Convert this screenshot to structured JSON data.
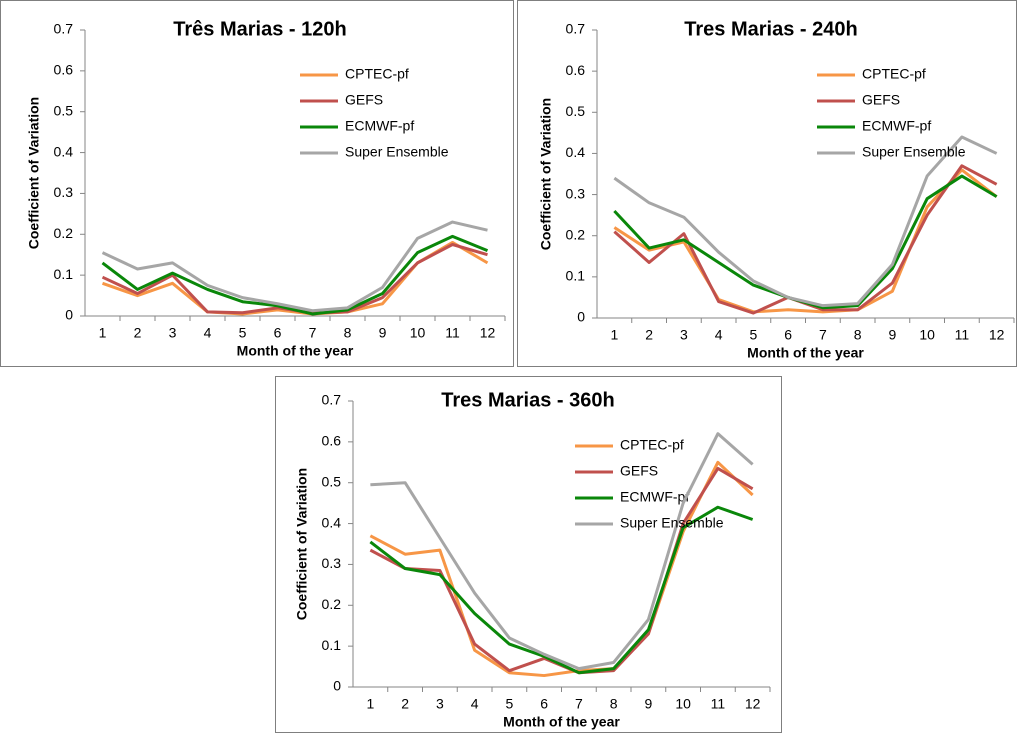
{
  "chart_data": [
    {
      "type": "line",
      "title": "Três Marias - 120h",
      "x_label": "Month of the year",
      "y_label": "Coefficient of Variation",
      "categories": [
        "1",
        "2",
        "3",
        "4",
        "5",
        "6",
        "7",
        "8",
        "9",
        "10",
        "11",
        "12"
      ],
      "ylim": [
        0,
        0.7
      ],
      "yticks": [
        0,
        0.1,
        0.2,
        0.3,
        0.4,
        0.5,
        0.6,
        0.7
      ],
      "grid": false,
      "series": [
        {
          "name": "CPTEC-pf",
          "color": "#f79646",
          "values": [
            0.08,
            0.05,
            0.08,
            0.01,
            0.005,
            0.015,
            0.005,
            0.01,
            0.03,
            0.13,
            0.18,
            0.13
          ]
        },
        {
          "name": "GEFS",
          "color": "#c0504d",
          "values": [
            0.095,
            0.055,
            0.1,
            0.01,
            0.008,
            0.02,
            0.007,
            0.01,
            0.045,
            0.13,
            0.175,
            0.15
          ]
        },
        {
          "name": "ECMWF-pf",
          "color": "#0a870a",
          "values": [
            0.13,
            0.065,
            0.105,
            0.065,
            0.035,
            0.025,
            0.005,
            0.015,
            0.055,
            0.155,
            0.195,
            0.16
          ]
        },
        {
          "name": "Super Ensemble",
          "color": "#a6a6a6",
          "values": [
            0.155,
            0.115,
            0.13,
            0.075,
            0.045,
            0.03,
            0.013,
            0.02,
            0.07,
            0.19,
            0.23,
            0.21
          ]
        }
      ]
    },
    {
      "type": "line",
      "title": "Tres Marias - 240h",
      "x_label": "Month of the year",
      "y_label": "Coefficient of Variation",
      "categories": [
        "1",
        "2",
        "3",
        "4",
        "5",
        "6",
        "7",
        "8",
        "9",
        "10",
        "11",
        "12"
      ],
      "ylim": [
        0,
        0.7
      ],
      "yticks": [
        0,
        0.1,
        0.2,
        0.3,
        0.4,
        0.5,
        0.6,
        0.7
      ],
      "grid": false,
      "series": [
        {
          "name": "CPTEC-pf",
          "color": "#f79646",
          "values": [
            0.22,
            0.165,
            0.185,
            0.045,
            0.015,
            0.02,
            0.015,
            0.02,
            0.065,
            0.27,
            0.36,
            0.295
          ]
        },
        {
          "name": "GEFS",
          "color": "#c0504d",
          "values": [
            0.21,
            0.135,
            0.205,
            0.04,
            0.012,
            0.05,
            0.02,
            0.02,
            0.085,
            0.25,
            0.37,
            0.325
          ]
        },
        {
          "name": "ECMWF-pf",
          "color": "#0a870a",
          "values": [
            0.26,
            0.17,
            0.19,
            0.135,
            0.08,
            0.05,
            0.025,
            0.03,
            0.12,
            0.29,
            0.345,
            0.295
          ]
        },
        {
          "name": "Super Ensemble",
          "color": "#a6a6a6",
          "values": [
            0.34,
            0.28,
            0.245,
            0.16,
            0.09,
            0.05,
            0.03,
            0.035,
            0.13,
            0.345,
            0.44,
            0.4
          ]
        }
      ]
    },
    {
      "type": "line",
      "title": "Tres Marias - 360h",
      "x_label": "Month of the year",
      "y_label": "Coefficient of Variation",
      "categories": [
        "1",
        "2",
        "3",
        "4",
        "5",
        "6",
        "7",
        "8",
        "9",
        "10",
        "11",
        "12"
      ],
      "ylim": [
        0,
        0.7
      ],
      "yticks": [
        0,
        0.1,
        0.2,
        0.3,
        0.4,
        0.5,
        0.6,
        0.7
      ],
      "grid": false,
      "series": [
        {
          "name": "CPTEC-pf",
          "color": "#f79646",
          "values": [
            0.37,
            0.325,
            0.335,
            0.09,
            0.035,
            0.028,
            0.04,
            0.045,
            0.13,
            0.38,
            0.55,
            0.47
          ]
        },
        {
          "name": "GEFS",
          "color": "#c0504d",
          "values": [
            0.335,
            0.29,
            0.285,
            0.105,
            0.04,
            0.07,
            0.035,
            0.04,
            0.13,
            0.4,
            0.535,
            0.485
          ]
        },
        {
          "name": "ECMWF-pf",
          "color": "#0a870a",
          "values": [
            0.355,
            0.29,
            0.275,
            0.18,
            0.105,
            0.075,
            0.035,
            0.045,
            0.14,
            0.39,
            0.44,
            0.41
          ]
        },
        {
          "name": "Super Ensemble",
          "color": "#a6a6a6",
          "values": [
            0.495,
            0.5,
            0.365,
            0.23,
            0.12,
            0.08,
            0.045,
            0.06,
            0.165,
            0.45,
            0.62,
            0.545
          ]
        }
      ]
    }
  ]
}
